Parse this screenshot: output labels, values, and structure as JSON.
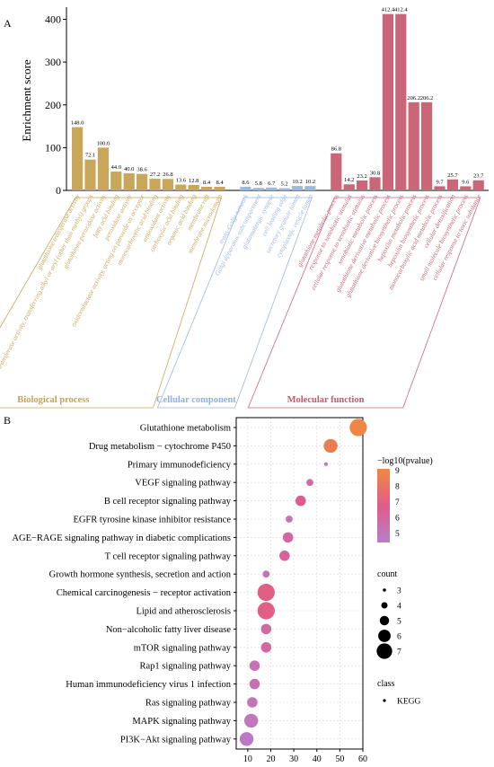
{
  "panel_a_label": "A",
  "panel_b_label": "B",
  "colors": {
    "bp": "#c9a75a",
    "cc": "#9bb8e0",
    "mf": "#c96778",
    "bp_text": "#c4a255",
    "cc_text": "#8fb0dd",
    "mf_text": "#c0596e"
  },
  "chart_data": [
    {
      "type": "bar",
      "panel": "A",
      "ylabel": "Enrichment score",
      "ylim": [
        0,
        420
      ],
      "yticks": [
        0,
        100,
        200,
        300,
        400
      ],
      "grid": false,
      "categories": [
        "glutathione transferase activity",
        "transferase activity, transferring alkyl or aryl (other than methyl) groups",
        "glutathione peroxidase activity",
        "fatty acid binding",
        "peroxidase activity",
        "oxidoreductase activity, acting on peroxide as acceptor",
        "monocarboxylic acid binding",
        "antioxidant activity",
        "carboxylic acid binding",
        "organic acid binding",
        "membrane raft",
        "membrane microdomain",
        "trans-Golgi network",
        "Golgi apparatus subcompartment",
        "glutamatergic synapse",
        "cell leading edge",
        "secretory granule lumen",
        "cytoplasmic vesicle lumen",
        "glutathione metabolic process",
        "response to xenobiotic stimulus",
        "cellular response to xenobiotic stimulus",
        "xenobiotic metabolic process",
        "glutathione derivative metabolic process",
        "glutathione derivative biosynthetic process",
        "hepoxilin metabolic process",
        "hepoxilin biosynthetic process",
        "monocarboxylic acid metabolic process",
        "cellular detoxification",
        "small molecule biosynthetic process",
        "cellular response to toxic substance"
      ],
      "values": [
        148.0,
        72.1,
        100.0,
        44.0,
        40.0,
        38.6,
        27.2,
        26.8,
        13.6,
        12.8,
        8.4,
        8.4,
        8.6,
        5.8,
        6.7,
        5.2,
        10.2,
        10.2,
        86.8,
        14.2,
        23.2,
        30.8,
        412.4,
        412.4,
        206.2,
        206.2,
        9.7,
        25.7,
        9.6,
        23.7
      ],
      "value_labels": [
        "148.0",
        "72.1",
        "100.0",
        "44.0",
        "40.0",
        "38.6",
        "27.2",
        "26.8",
        "13.6",
        "12.8",
        "8.4",
        "8.4",
        "8.6",
        "5.8",
        "6.7",
        "5.2",
        "10.2",
        "10.2",
        "86.8",
        "14.2",
        "23.2",
        "30.8",
        "412.4",
        "412.4",
        "206.2",
        "206.2",
        "9.7",
        "25.7",
        "9.6",
        "23.7"
      ],
      "groups": [
        {
          "name": "Biological process",
          "start": 0,
          "end": 11,
          "color": "#c9a75a"
        },
        {
          "name": "Cellular component",
          "start": 12,
          "end": 17,
          "color": "#9bb8e0"
        },
        {
          "name": "Molecular function",
          "start": 18,
          "end": 29,
          "color": "#c96778"
        }
      ]
    },
    {
      "type": "scatter",
      "panel": "B",
      "xlim": [
        5,
        60
      ],
      "xticks": [
        10,
        20,
        30,
        40,
        50,
        60
      ],
      "grid": true,
      "categories": [
        "Glutathione metabolism",
        "Drug metabolism − cytochrome P450",
        "Primary immunodeficiency",
        "VEGF signaling pathway",
        "B cell receptor signaling pathway",
        "EGFR tyrosine kinase inhibitor resistance",
        "AGE−RAGE signaling pathway in diabetic complications",
        "T cell receptor signaling pathway",
        "Growth hormone synthesis, secretion and action",
        "Chemical carcinogenesis − receptor activation",
        "Lipid and atherosclerosis",
        "Non−alcoholic fatty liver disease",
        "mTOR signaling pathway",
        "Rap1 signaling pathway",
        "Human immunodeficiency virus 1 infection",
        "Ras signaling pathway",
        "MAPK signaling pathway",
        "PI3K−Akt signaling pathway"
      ],
      "x": [
        58,
        46,
        44,
        37,
        33,
        28,
        27.5,
        26,
        18,
        18,
        18,
        18,
        18,
        13,
        13,
        12,
        11.5,
        9.5
      ],
      "count": [
        6,
        5,
        2,
        3,
        4,
        3,
        4,
        4,
        3,
        6,
        6,
        4,
        4,
        4,
        4,
        4,
        5,
        5
      ],
      "neglog10p": [
        9,
        8.5,
        5,
        5.8,
        6.6,
        5.2,
        6.0,
        6.3,
        5.0,
        6.9,
        6.9,
        5.8,
        5.8,
        5.2,
        5.2,
        5.1,
        4.9,
        4.6
      ],
      "legend_color": {
        "title": "−log10(pvalue)",
        "min": 4.4,
        "max": 9.1,
        "ticks": [
          5,
          6,
          7,
          8,
          9
        ],
        "low": "#b77ec9",
        "mid": "#e05c8a",
        "high": "#f08840"
      },
      "legend_size": {
        "title": "count",
        "values": [
          3,
          4,
          5,
          6,
          7
        ]
      },
      "legend_class": {
        "title": "class",
        "entries": [
          "KEGG"
        ]
      },
      "legend_placement": "right"
    }
  ]
}
